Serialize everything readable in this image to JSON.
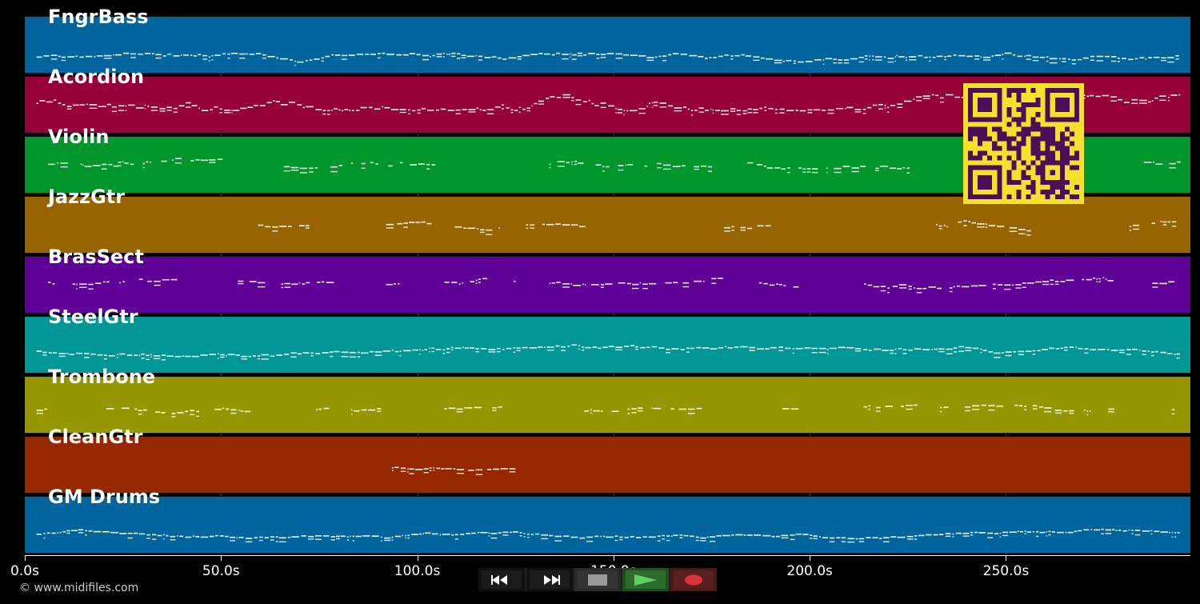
{
  "tracks": [
    {
      "name": "FngrBass",
      "color": "#00659c",
      "density": 1.0,
      "segments": [
        [
          0.01,
          0.99
        ]
      ],
      "band": [
        0.62,
        0.78
      ],
      "spread": 0.1
    },
    {
      "name": "Acordion",
      "color": "#96003a",
      "density": 1.0,
      "segments": [
        [
          0.01,
          0.99
        ]
      ],
      "band": [
        0.3,
        0.58
      ],
      "spread": 0.18
    },
    {
      "name": "Violin",
      "color": "#00962b",
      "density": 0.8,
      "segments": [
        [
          0.02,
          0.08
        ],
        [
          0.08,
          0.18
        ],
        [
          0.22,
          0.27
        ],
        [
          0.28,
          0.36
        ],
        [
          0.45,
          0.59
        ],
        [
          0.62,
          0.76
        ],
        [
          0.96,
          0.99
        ]
      ],
      "band": [
        0.35,
        0.55
      ],
      "spread": 0.12
    },
    {
      "name": "JazzGtr",
      "color": "#966400",
      "density": 0.7,
      "segments": [
        [
          0.2,
          0.25
        ],
        [
          0.31,
          0.41
        ],
        [
          0.43,
          0.48
        ],
        [
          0.6,
          0.65
        ],
        [
          0.77,
          0.86
        ],
        [
          0.94,
          0.99
        ]
      ],
      "band": [
        0.4,
        0.6
      ],
      "spread": 0.1
    },
    {
      "name": "BrasSect",
      "color": "#5f0096",
      "density": 0.8,
      "segments": [
        [
          0.02,
          0.13
        ],
        [
          0.18,
          0.2
        ],
        [
          0.22,
          0.26
        ],
        [
          0.31,
          0.32
        ],
        [
          0.36,
          0.42
        ],
        [
          0.45,
          0.6
        ],
        [
          0.63,
          0.66
        ],
        [
          0.71,
          0.93
        ],
        [
          0.96,
          0.99
        ]
      ],
      "band": [
        0.35,
        0.55
      ],
      "spread": 0.1
    },
    {
      "name": "SteelGtr",
      "color": "#009696",
      "density": 1.0,
      "segments": [
        [
          0.01,
          0.99
        ]
      ],
      "band": [
        0.45,
        0.68
      ],
      "spread": 0.08
    },
    {
      "name": "Trombone",
      "color": "#969600",
      "density": 0.7,
      "segments": [
        [
          0.01,
          0.02
        ],
        [
          0.07,
          0.19
        ],
        [
          0.25,
          0.26
        ],
        [
          0.28,
          0.31
        ],
        [
          0.36,
          0.41
        ],
        [
          0.48,
          0.59
        ],
        [
          0.65,
          0.66
        ],
        [
          0.71,
          0.93
        ],
        [
          0.98,
          0.99
        ]
      ],
      "band": [
        0.48,
        0.65
      ],
      "spread": 0.08
    },
    {
      "name": "CleanGtr",
      "color": "#962800",
      "density": 0.9,
      "segments": [
        [
          0.315,
          0.42
        ]
      ],
      "band": [
        0.46,
        0.58
      ],
      "spread": 0.05
    },
    {
      "name": "GM Drums",
      "color": "#00659c",
      "density": 1.0,
      "segments": [
        [
          0.01,
          0.99
        ]
      ],
      "band": [
        0.55,
        0.72
      ],
      "spread": 0.06
    }
  ],
  "axis": {
    "unit": "s",
    "ticks": [
      "0.0s",
      "50.0s",
      "100.0s",
      "150.0s",
      "200.0s",
      "250.0s"
    ],
    "tick_values": [
      0,
      50,
      100,
      150,
      200,
      250
    ],
    "max_seconds": 297
  },
  "copyright": "© www.midifiles.com",
  "controls": [
    {
      "name": "rewind-button",
      "icon": "rewind-icon",
      "bg": "#111111",
      "inner": "#1b1b1b"
    },
    {
      "name": "fast-forward-button",
      "icon": "fast-forward-icon",
      "bg": "#111111",
      "inner": "#1b1b1b"
    },
    {
      "name": "stop-button",
      "icon": "stop-icon",
      "bg": "#2a2a2a",
      "inner": "#333333"
    },
    {
      "name": "play-button",
      "icon": "play-icon",
      "bg": "#1f4f1f",
      "inner": "#2b6b2b"
    },
    {
      "name": "record-button",
      "icon": "record-icon",
      "bg": "#4a1a1a",
      "inner": "#5a1f1f"
    }
  ],
  "qr": {
    "fg": "#4b0f5a",
    "bg": "#f5e12c",
    "icon": "qr-code-icon"
  }
}
